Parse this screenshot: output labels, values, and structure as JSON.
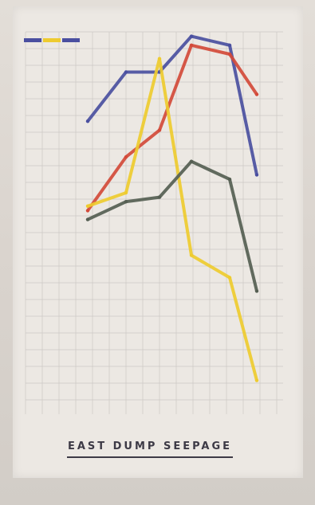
{
  "chart_data": {
    "type": "line",
    "title": "EAST DUMP SEEPAGE",
    "categories": [
      "",
      "",
      "",
      "",
      "",
      ""
    ],
    "series": [
      {
        "name": "",
        "color": "#4a4fa0",
        "values": [
          6.2,
          7.3,
          7.3,
          8.1,
          7.9,
          5.0
        ]
      },
      {
        "name": "",
        "color": "#d34a3a",
        "values": [
          4.2,
          5.4,
          6.0,
          7.9,
          7.7,
          6.8
        ]
      },
      {
        "name": "",
        "color": "#eecb2f",
        "values": [
          4.3,
          4.6,
          7.6,
          3.2,
          2.7,
          0.4
        ]
      },
      {
        "name": "",
        "color": "#555e52",
        "values": [
          4.0,
          4.4,
          4.5,
          5.3,
          4.9,
          2.4
        ]
      }
    ],
    "ylim": [
      0,
      8.2
    ],
    "grid": true,
    "legend": "top-left"
  }
}
